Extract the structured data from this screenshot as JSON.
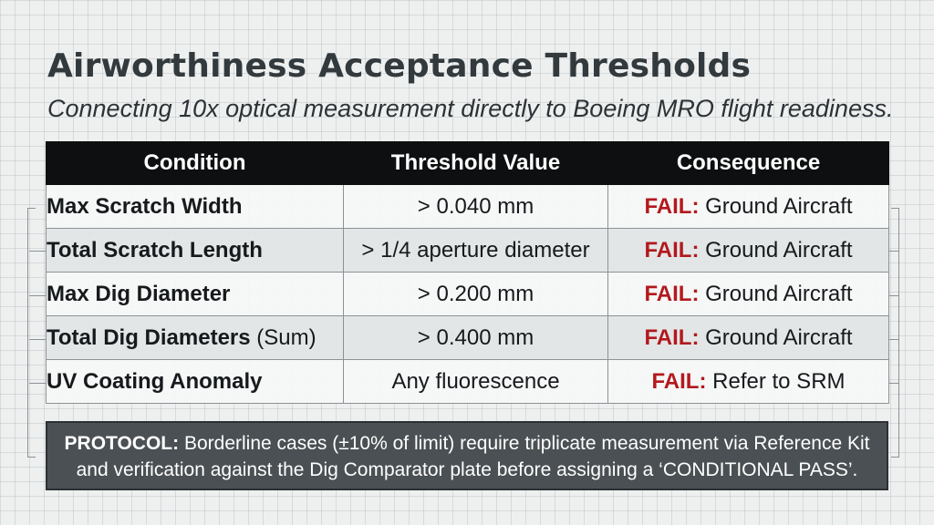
{
  "header": {
    "title": "Airworthiness Acceptance Thresholds",
    "subtitle": "Connecting 10x optical measurement directly to Boeing MRO flight readiness."
  },
  "table": {
    "columns": [
      "Condition",
      "Threshold Value",
      "Consequence"
    ],
    "rows": [
      {
        "condition": "Max Scratch Width",
        "qualifier": "",
        "threshold": "> 0.040 mm",
        "status": "FAIL:",
        "action": "Ground Aircraft"
      },
      {
        "condition": "Total Scratch Length",
        "qualifier": "",
        "threshold": "> 1/4 aperture diameter",
        "status": "FAIL:",
        "action": "Ground Aircraft"
      },
      {
        "condition": "Max Dig Diameter",
        "qualifier": "",
        "threshold": "> 0.200 mm",
        "status": "FAIL:",
        "action": "Ground Aircraft"
      },
      {
        "condition": "Total Dig Diameters",
        "qualifier": "(Sum)",
        "threshold": "> 0.400 mm",
        "status": "FAIL:",
        "action": "Ground Aircraft"
      },
      {
        "condition": "UV Coating Anomaly",
        "qualifier": "",
        "threshold": "Any fluorescence",
        "status": "FAIL:",
        "action": "Refer to SRM"
      }
    ]
  },
  "protocol": {
    "label": "PROTOCOL:",
    "line1": "Borderline cases (±10% of limit) require triplicate measurement via Reference Kit",
    "line2": "and verification against the Dig Comparator plate before assigning a ‘CONDITIONAL PASS’."
  },
  "colors": {
    "fail": "#b3191d",
    "header_bg": "#0d0f10",
    "protocol_bg": "#4a5053"
  }
}
